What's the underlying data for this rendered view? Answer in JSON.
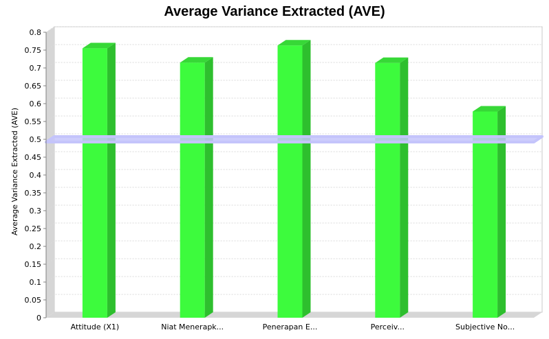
{
  "chart_data": {
    "type": "bar",
    "title": "Average Variance Extracted (AVE)",
    "xlabel": "",
    "ylabel": "Average Variance Extracted (AVE)",
    "categories": [
      "Attitude (X1)",
      "Niat Menerapk...",
      "Penerapan E...",
      "Perceiv...",
      "Subjective No..."
    ],
    "values": [
      0.755,
      0.715,
      0.763,
      0.714,
      0.578
    ],
    "ylim": [
      0,
      0.8
    ],
    "yticks": [
      "0",
      "0.05",
      "0.1",
      "0.15",
      "0.2",
      "0.25",
      "0.3",
      "0.35",
      "0.4",
      "0.45",
      "0.5",
      "0.55",
      "0.6",
      "0.65",
      "0.7",
      "0.75",
      "0.8"
    ],
    "threshold": 0.5,
    "grid": true,
    "colors": {
      "bar_front": "#3dfb3d",
      "bar_side": "#2ebf2e",
      "bar_top": "#37d837",
      "threshold": "#c4c4fb",
      "plot_bg": "#ffffff",
      "wall": "#d6d6d6",
      "gridline": "#d9d9d9"
    }
  }
}
